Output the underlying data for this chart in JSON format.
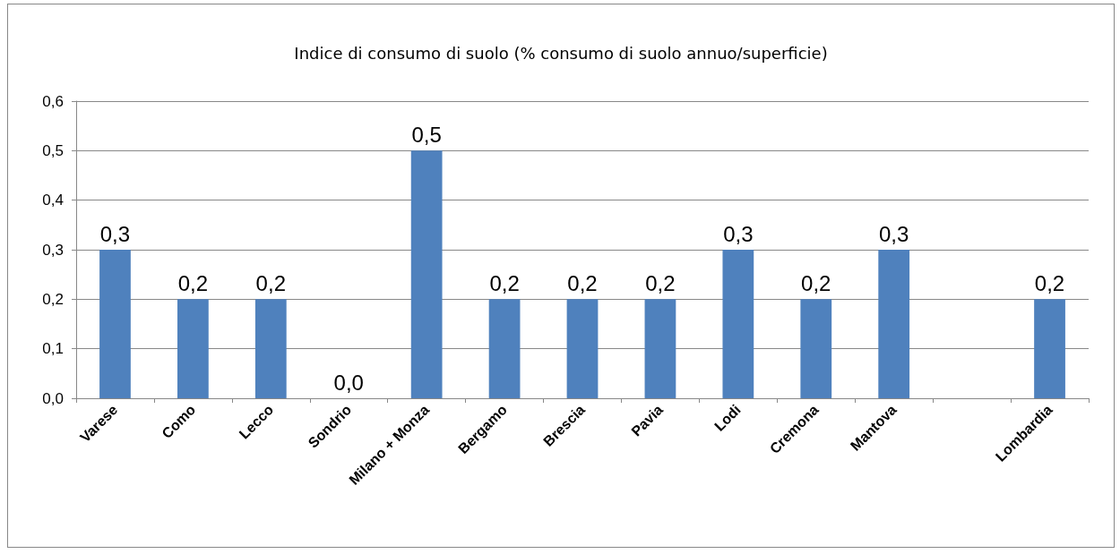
{
  "chart_data": {
    "type": "bar",
    "title": "Indice di consumo di suolo (% consumo di suolo annuo/superficie)",
    "categories": [
      "Varese",
      "Como",
      "Lecco",
      "Sondrio",
      "Milano + Monza",
      "Bergamo",
      "Brescia",
      "Pavia",
      "Lodi",
      "Cremona",
      "Mantova",
      null,
      "Lombardia"
    ],
    "values": [
      0.3,
      0.2,
      0.2,
      0.0,
      0.5,
      0.2,
      0.2,
      0.2,
      0.3,
      0.2,
      0.3,
      null,
      0.2
    ],
    "value_labels": [
      "0,3",
      "0,2",
      "0,2",
      "0,0",
      "0,5",
      "0,2",
      "0,2",
      "0,2",
      "0,3",
      "0,2",
      "0,3",
      null,
      "0,2"
    ],
    "color": "#4f81bd",
    "ylim": [
      0,
      0.6
    ],
    "yticks": [
      {
        "value": 0,
        "label": "0,0"
      },
      {
        "value": 0.1,
        "label": "0,1"
      },
      {
        "value": 0.2,
        "label": "0,2"
      },
      {
        "value": 0.3,
        "label": "0,3"
      },
      {
        "value": 0.4,
        "label": "0,4"
      },
      {
        "value": 0.5,
        "label": "0,5"
      },
      {
        "value": 0.6,
        "label": "0,6"
      }
    ],
    "grid": "y"
  }
}
